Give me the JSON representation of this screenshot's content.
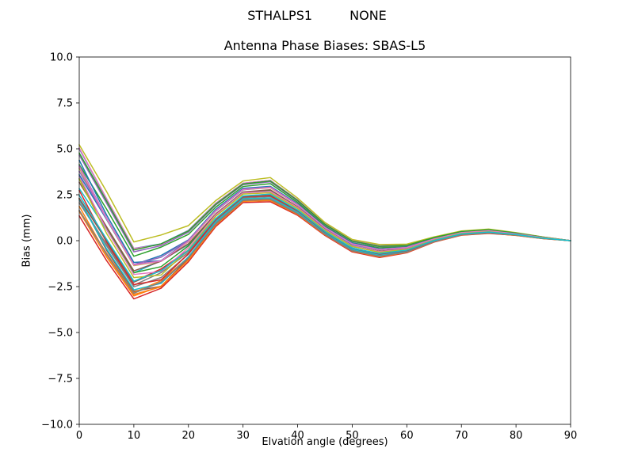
{
  "header": {
    "station": "STHALPS1",
    "receiver": "NONE"
  },
  "chart": {
    "title": "Antenna Phase Biases: SBAS-L5",
    "xlabel": "Elvation angle (degrees)",
    "ylabel": "Bias (mm)"
  },
  "chart_data": {
    "type": "line",
    "title": "Antenna Phase Biases: SBAS-L5",
    "suptitle": "STHALPS1        NONE",
    "xlabel": "Elvation angle (degrees)",
    "ylabel": "Bias (mm)",
    "xlim": [
      0,
      90
    ],
    "ylim": [
      -10,
      10
    ],
    "grid": false,
    "legend": "none",
    "line_width": 1.5,
    "xticks": {
      "values": [
        0,
        10,
        20,
        30,
        40,
        50,
        60,
        70,
        80,
        90
      ],
      "labels": [
        "0",
        "10",
        "20",
        "30",
        "40",
        "50",
        "60",
        "70",
        "80",
        "90"
      ]
    },
    "yticks": {
      "values": [
        10,
        7.5,
        5,
        2.5,
        0,
        -2.5,
        -5,
        -7.5,
        -10
      ],
      "labels": [
        "10.0",
        "7.5",
        "5.0",
        "2.5",
        "0.0",
        "−2.5",
        "−5.0",
        "−7.5",
        "−10.0"
      ]
    },
    "x": [
      0,
      5,
      10,
      15,
      20,
      25,
      30,
      35,
      40,
      45,
      50,
      55,
      60,
      65,
      70,
      75,
      80,
      85,
      90
    ],
    "ensemble": {
      "description": "Bundle of antenna phase bias curves; each series value = base + factor*spread + jitter*wiggle at each x",
      "base": [
        3.2,
        0.6,
        -1.8,
        -1.4,
        -0.3,
        1.4,
        2.6,
        2.7,
        1.8,
        0.6,
        -0.3,
        -0.6,
        -0.45,
        0.05,
        0.4,
        0.5,
        0.35,
        0.15,
        0.0
      ],
      "spread": [
        1.8,
        1.6,
        1.3,
        1.1,
        0.8,
        0.6,
        0.5,
        0.55,
        0.4,
        0.3,
        0.3,
        0.3,
        0.2,
        0.12,
        0.1,
        0.1,
        0.06,
        0.04,
        0.0
      ],
      "wiggle": [
        0.5,
        0.8,
        0.7,
        0.9,
        0.5,
        0.3,
        0.25,
        0.3,
        0.2,
        0.15,
        0.12,
        0.15,
        0.1,
        0.06,
        0.05,
        0.05,
        0.04,
        0.02,
        0.0
      ],
      "series_factors": [
        0.95,
        -0.6,
        0.3,
        -1.0,
        0.7,
        -0.25,
        1.0,
        -0.8,
        0.5,
        -0.45,
        0.85,
        -0.95,
        0.15,
        -0.7,
        0.6,
        -0.15,
        0.4,
        -0.55,
        0.9,
        -0.35,
        0.05,
        -0.85,
        0.75,
        -0.05,
        0.25,
        -0.65,
        0.55,
        -0.9,
        0.35,
        -0.5
      ],
      "series_jitter": [
        0.2,
        -0.5,
        0.8,
        -0.1,
        0.4,
        -0.9,
        0.1,
        0.6,
        -0.3,
        0.9,
        -0.7,
        0.3,
        -0.2,
        0.7,
        -0.4,
        0.5,
        -0.8,
        0.0,
        0.8,
        -0.6,
        0.6,
        -0.15,
        0.45,
        -0.75,
        0.25,
        0.55,
        -0.35,
        0.15,
        -0.95,
        0.35
      ]
    },
    "colors": [
      "#1f77b4",
      "#ff7f0e",
      "#2ca02c",
      "#d62728",
      "#9467bd",
      "#8c564b",
      "#e377c2",
      "#7f7f7f",
      "#bcbd22",
      "#17becf"
    ],
    "axis_color": "#000000"
  }
}
